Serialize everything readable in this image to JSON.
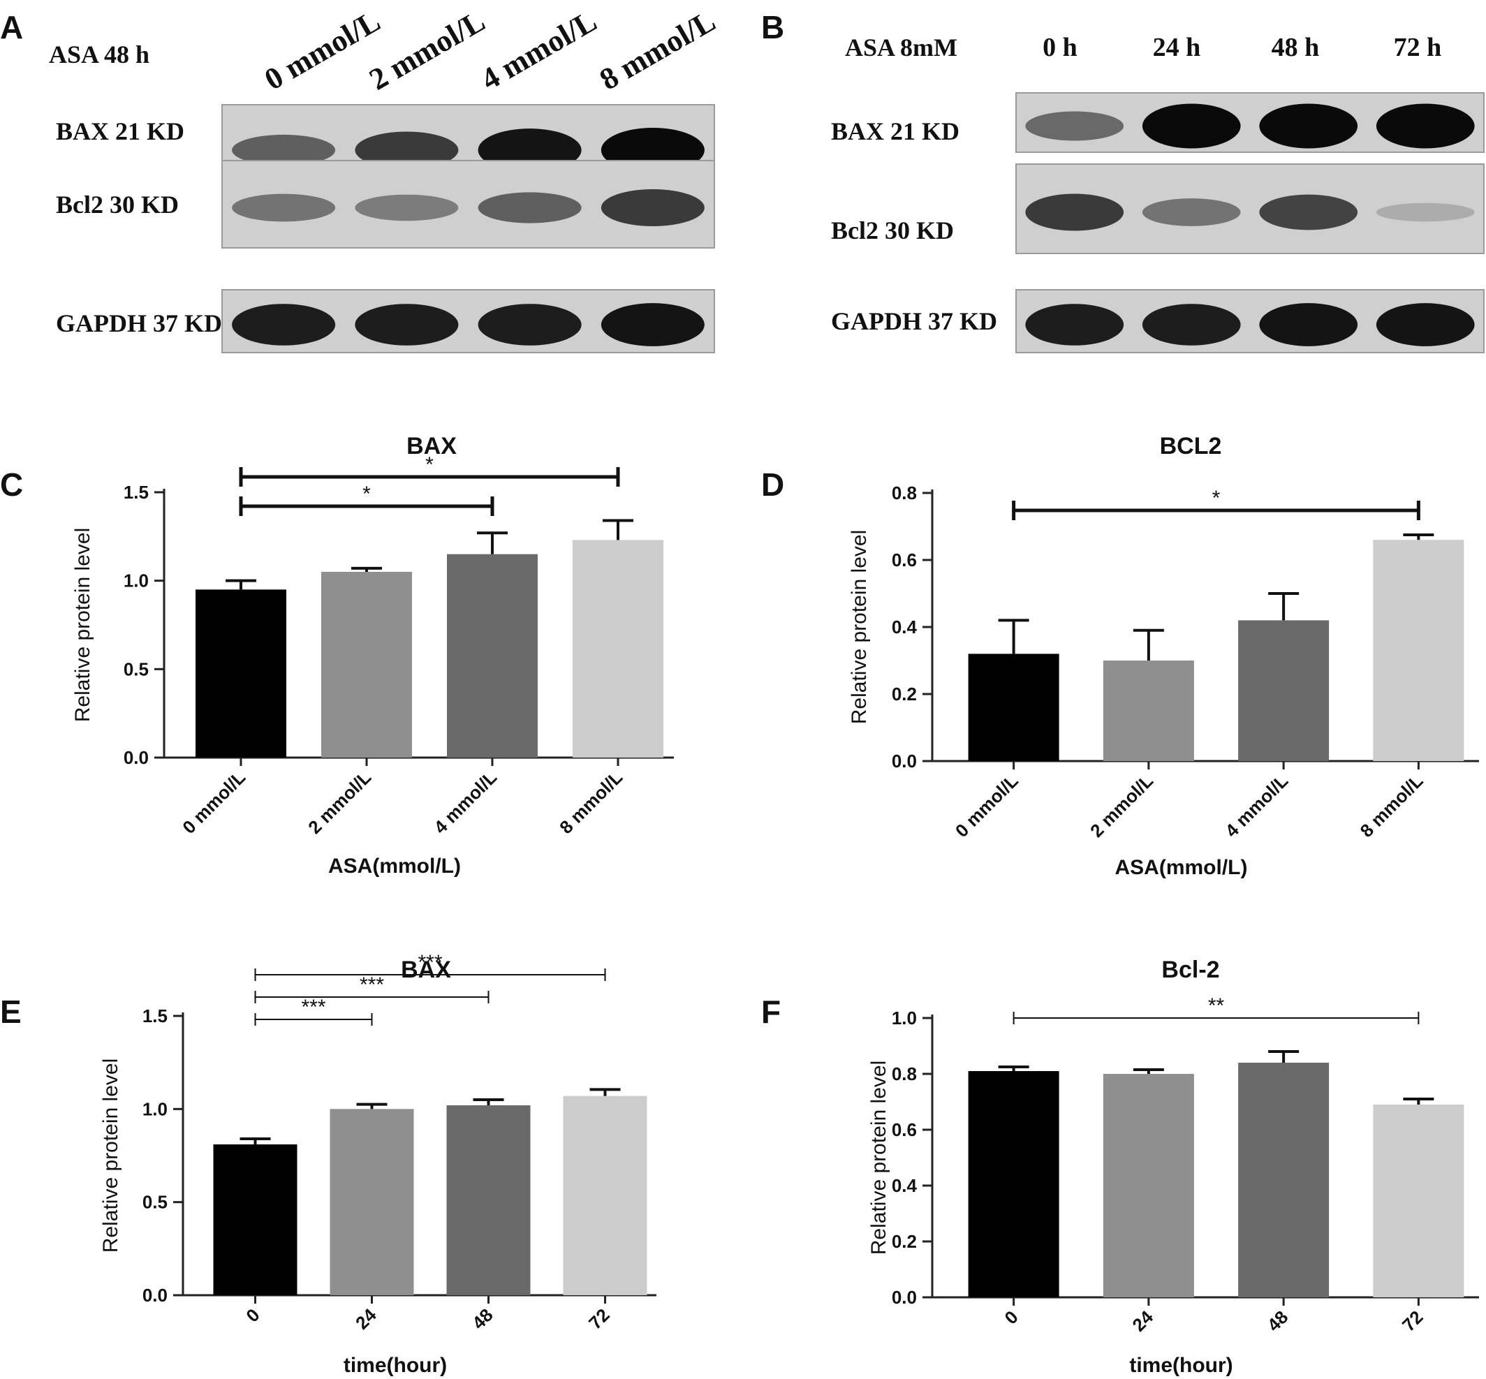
{
  "blots": [
    {
      "letter": "A",
      "header": "ASA 48 h",
      "lanes": [
        "0 mmol/L",
        "2 mmol/L",
        "4 mmol/L",
        "8 mmol/L"
      ],
      "rows": [
        {
          "label": "BAX  21 KD",
          "intensity": [
            0.55,
            0.75,
            0.95,
            1.0
          ]
        },
        {
          "label": "Bcl2  30 KD",
          "intensity": [
            0.45,
            0.4,
            0.55,
            0.75
          ]
        },
        {
          "label": "GAPDH  37 KD",
          "intensity": [
            0.9,
            0.9,
            0.9,
            0.95
          ]
        }
      ]
    },
    {
      "letter": "B",
      "header": "ASA 8mM",
      "lanes": [
        "0 h",
        "24 h",
        "48 h",
        "72 h"
      ],
      "rows": [
        {
          "label": "BAX  21 KD",
          "intensity": [
            0.5,
            1.0,
            1.0,
            1.0
          ]
        },
        {
          "label": "Bcl2  30 KD",
          "intensity": [
            0.75,
            0.45,
            0.7,
            0.15
          ]
        },
        {
          "label": "GAPDH  37 KD",
          "intensity": [
            0.9,
            0.9,
            0.95,
            0.95
          ]
        }
      ]
    }
  ],
  "chart_data": [
    {
      "letter": "C",
      "type": "bar",
      "title": "BAX",
      "ylabel": "Relative protein level",
      "xlabel": "ASA(mmol/L)",
      "categories": [
        "0 mmol/L",
        "2 mmol/L",
        "4 mmol/L",
        "8 mmol/L"
      ],
      "values": [
        0.95,
        1.05,
        1.15,
        1.23
      ],
      "errors": [
        0.05,
        0.02,
        0.12,
        0.11
      ],
      "ylim": [
        0,
        1.5
      ],
      "yticks": [
        "0.0",
        "0.5",
        "1.0",
        "1.5"
      ],
      "bar_colors": [
        "#000000",
        "#8f8f8f",
        "#6a6a6a",
        "#cccccc"
      ],
      "rotate_ticks": true,
      "bracket_style": "capped",
      "significance": [
        {
          "from": 0,
          "to": 2,
          "label": "*"
        },
        {
          "from": 0,
          "to": 3,
          "label": "*"
        }
      ]
    },
    {
      "letter": "D",
      "type": "bar",
      "title": "BCL2",
      "ylabel": "Relative protein level",
      "xlabel": "ASA(mmol/L)",
      "categories": [
        "0 mmol/L",
        "2 mmol/L",
        "4 mmol/L",
        "8 mmol/L"
      ],
      "values": [
        0.32,
        0.3,
        0.42,
        0.66
      ],
      "errors": [
        0.1,
        0.09,
        0.08,
        0.015
      ],
      "ylim": [
        0,
        0.8
      ],
      "yticks": [
        "0.0",
        "0.2",
        "0.4",
        "0.6",
        "0.8"
      ],
      "bar_colors": [
        "#000000",
        "#8f8f8f",
        "#6a6a6a",
        "#cccccc"
      ],
      "rotate_ticks": true,
      "bracket_style": "capped",
      "significance": [
        {
          "from": 0,
          "to": 3,
          "label": "*"
        }
      ]
    },
    {
      "letter": "E",
      "type": "bar",
      "title": "BAX",
      "ylabel": "Relative protein level",
      "xlabel": "time(hour)",
      "categories": [
        "0",
        "24",
        "48",
        "72"
      ],
      "values": [
        0.81,
        1.0,
        1.02,
        1.07
      ],
      "errors": [
        0.03,
        0.025,
        0.03,
        0.035
      ],
      "ylim": [
        0,
        1.5
      ],
      "yticks": [
        "0.0",
        "0.5",
        "1.0",
        "1.5"
      ],
      "bar_colors": [
        "#000000",
        "#8f8f8f",
        "#6a6a6a",
        "#cccccc"
      ],
      "rotate_ticks": true,
      "bracket_style": "thin",
      "significance": [
        {
          "from": 0,
          "to": 1,
          "label": "***"
        },
        {
          "from": 0,
          "to": 2,
          "label": "***"
        },
        {
          "from": 0,
          "to": 3,
          "label": "***"
        }
      ]
    },
    {
      "letter": "F",
      "type": "bar",
      "title": "Bcl-2",
      "ylabel": "Relative protein level",
      "xlabel": "time(hour)",
      "categories": [
        "0",
        "24",
        "48",
        "72"
      ],
      "values": [
        0.81,
        0.8,
        0.84,
        0.69
      ],
      "errors": [
        0.015,
        0.015,
        0.04,
        0.02
      ],
      "ylim": [
        0,
        1.0
      ],
      "yticks": [
        "0.0",
        "0.2",
        "0.4",
        "0.6",
        "0.8",
        "1.0"
      ],
      "bar_colors": [
        "#000000",
        "#8f8f8f",
        "#6a6a6a",
        "#cccccc"
      ],
      "rotate_ticks": true,
      "bracket_style": "thin",
      "significance": [
        {
          "from": 0,
          "to": 3,
          "label": "**"
        }
      ]
    }
  ]
}
